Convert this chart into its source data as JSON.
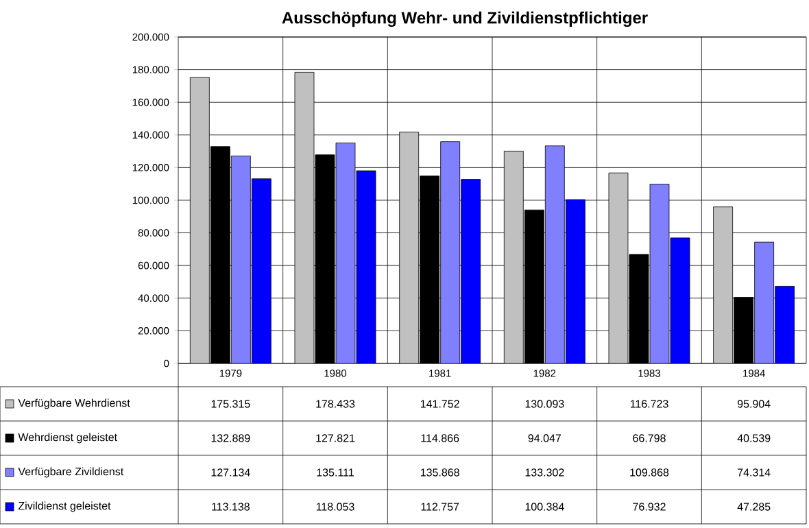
{
  "chart_data": {
    "type": "bar",
    "title": "Ausschöpfung Wehr- und Zivildienstpflichtiger",
    "categories": [
      "1979",
      "1980",
      "1981",
      "1982",
      "1983",
      "1984"
    ],
    "series": [
      {
        "name": "Verfügbare Wehrdienst",
        "color": "#c0c0c0",
        "values": [
          175315,
          178433,
          141752,
          130093,
          116723,
          95904
        ],
        "value_labels": [
          "175.315",
          "178.433",
          "141.752",
          "130.093",
          "116.723",
          "95.904"
        ]
      },
      {
        "name": "Wehrdienst geleistet",
        "color": "#000000",
        "values": [
          132889,
          127821,
          114866,
          94047,
          66798,
          40539
        ],
        "value_labels": [
          "132.889",
          "127.821",
          "114.866",
          "94.047",
          "66.798",
          "40.539"
        ]
      },
      {
        "name": "Verfügbare Zivildienst",
        "color": "#8080ff",
        "values": [
          127134,
          135111,
          135868,
          133302,
          109868,
          74314
        ],
        "value_labels": [
          "127.134",
          "135.111",
          "135.868",
          "133.302",
          "109.868",
          "74.314"
        ]
      },
      {
        "name": "Zivildienst geleistet",
        "color": "#0000ff",
        "values": [
          113138,
          118053,
          112757,
          100384,
          76932,
          47285
        ],
        "value_labels": [
          "113.138",
          "118.053",
          "112.757",
          "100.384",
          "76.932",
          "47.285"
        ]
      }
    ],
    "ylim": [
      0,
      200000
    ],
    "yticks": [
      0,
      {
        "value": 20000,
        "label": "20.000"
      },
      {
        "value": 40000,
        "label": "40.000"
      },
      {
        "value": 60000,
        "label": "60.000"
      },
      {
        "value": 80000,
        "label": "80.000"
      },
      {
        "value": 100000,
        "label": "100.000"
      },
      {
        "value": 120000,
        "label": "120.000"
      },
      {
        "value": 140000,
        "label": "140.000"
      },
      {
        "value": 160000,
        "label": "160.000"
      },
      {
        "value": 180000,
        "label": "180.000"
      },
      {
        "value": 200000,
        "label": "200.000"
      }
    ],
    "grid": "y",
    "legend": "bottom"
  }
}
